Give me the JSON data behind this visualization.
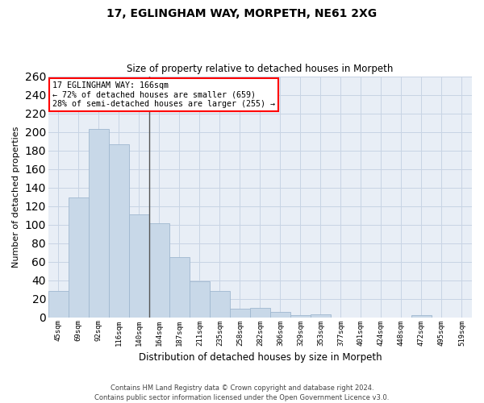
{
  "title1": "17, EGLINGHAM WAY, MORPETH, NE61 2XG",
  "title2": "Size of property relative to detached houses in Morpeth",
  "xlabel": "Distribution of detached houses by size in Morpeth",
  "ylabel": "Number of detached properties",
  "categories": [
    "45sqm",
    "69sqm",
    "92sqm",
    "116sqm",
    "140sqm",
    "164sqm",
    "187sqm",
    "211sqm",
    "235sqm",
    "258sqm",
    "282sqm",
    "306sqm",
    "329sqm",
    "353sqm",
    "377sqm",
    "401sqm",
    "424sqm",
    "448sqm",
    "472sqm",
    "495sqm",
    "519sqm"
  ],
  "values": [
    28,
    129,
    203,
    187,
    111,
    101,
    65,
    39,
    28,
    9,
    10,
    6,
    2,
    3,
    0,
    0,
    0,
    0,
    2,
    0,
    0
  ],
  "bar_color": "#c8d8e8",
  "bar_edge_color": "#a0b8d0",
  "annotation_text": "17 EGLINGHAM WAY: 166sqm\n← 72% of detached houses are smaller (659)\n28% of semi-detached houses are larger (255) →",
  "annotation_box_color": "white",
  "annotation_box_edge_color": "red",
  "ylim": [
    0,
    260
  ],
  "yticks": [
    0,
    20,
    40,
    60,
    80,
    100,
    120,
    140,
    160,
    180,
    200,
    220,
    240,
    260
  ],
  "grid_color": "#c8d4e4",
  "bg_color": "#e8eef6",
  "vline_x": 4.5,
  "footer1": "Contains HM Land Registry data © Crown copyright and database right 2024.",
  "footer2": "Contains public sector information licensed under the Open Government Licence v3.0."
}
